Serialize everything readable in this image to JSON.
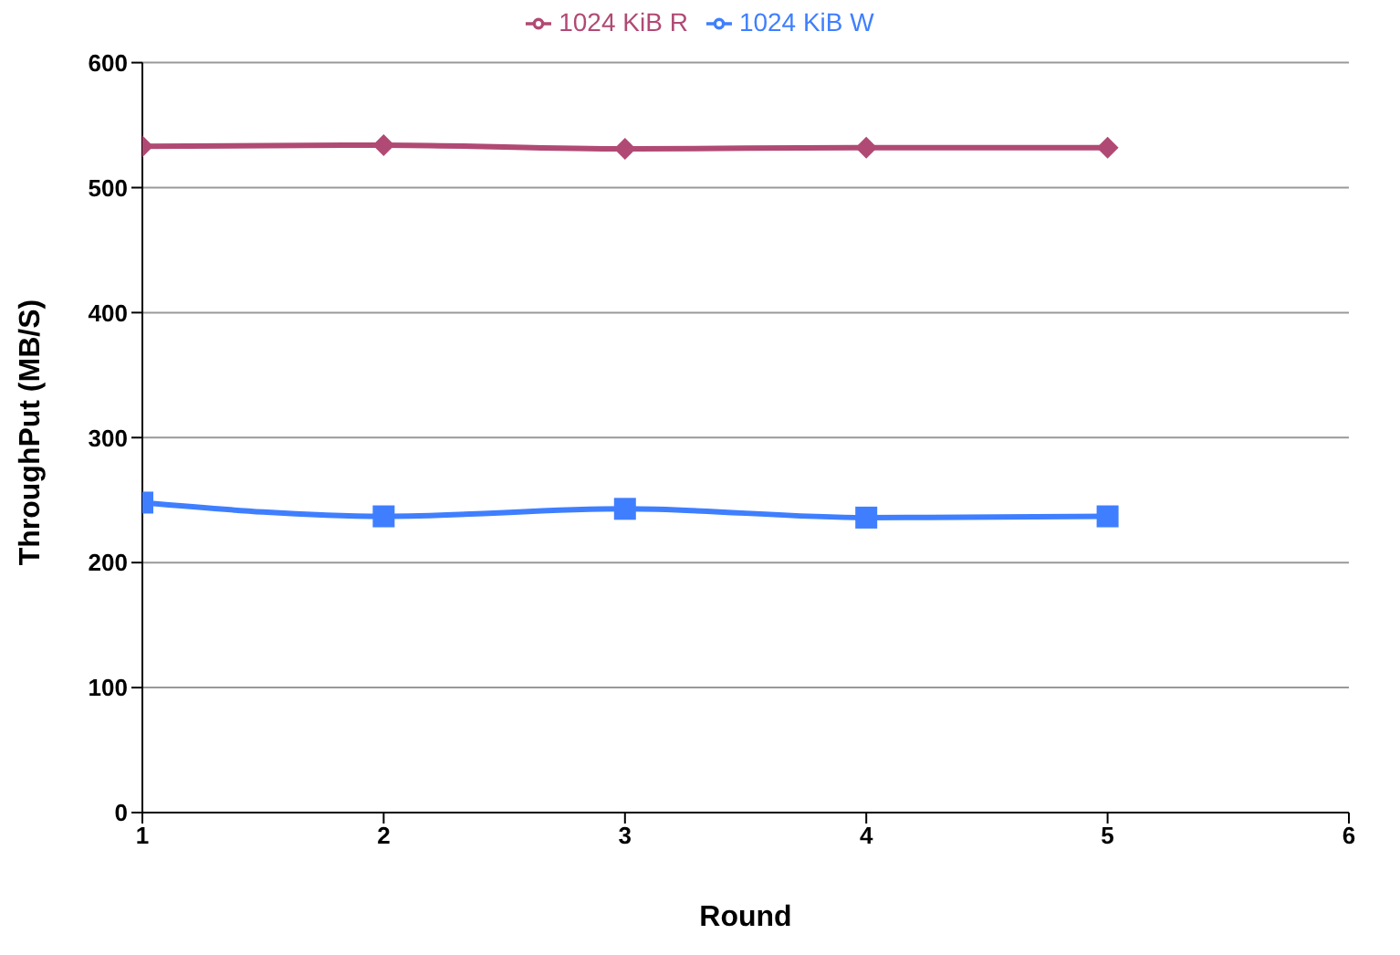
{
  "chart_data": {
    "type": "line",
    "xlabel": "Round",
    "ylabel": "ThroughPut (MB/S)",
    "x": [
      1,
      2,
      3,
      4,
      5
    ],
    "series": [
      {
        "name": "1024 KiB W",
        "color": "#3f7fff",
        "marker": "square",
        "values": [
          248,
          237,
          243,
          236,
          237
        ]
      },
      {
        "name": "1024 KiB R",
        "color": "#b04a74",
        "marker": "diamond",
        "values": [
          533,
          534,
          531,
          532,
          532
        ]
      }
    ],
    "xlim": [
      1,
      6
    ],
    "xticks": [
      1,
      2,
      3,
      4,
      5,
      6
    ],
    "ylim": [
      0,
      600
    ],
    "yticks": [
      0,
      100,
      200,
      300,
      400,
      500,
      600
    ],
    "grid": "y",
    "legend": "top"
  }
}
